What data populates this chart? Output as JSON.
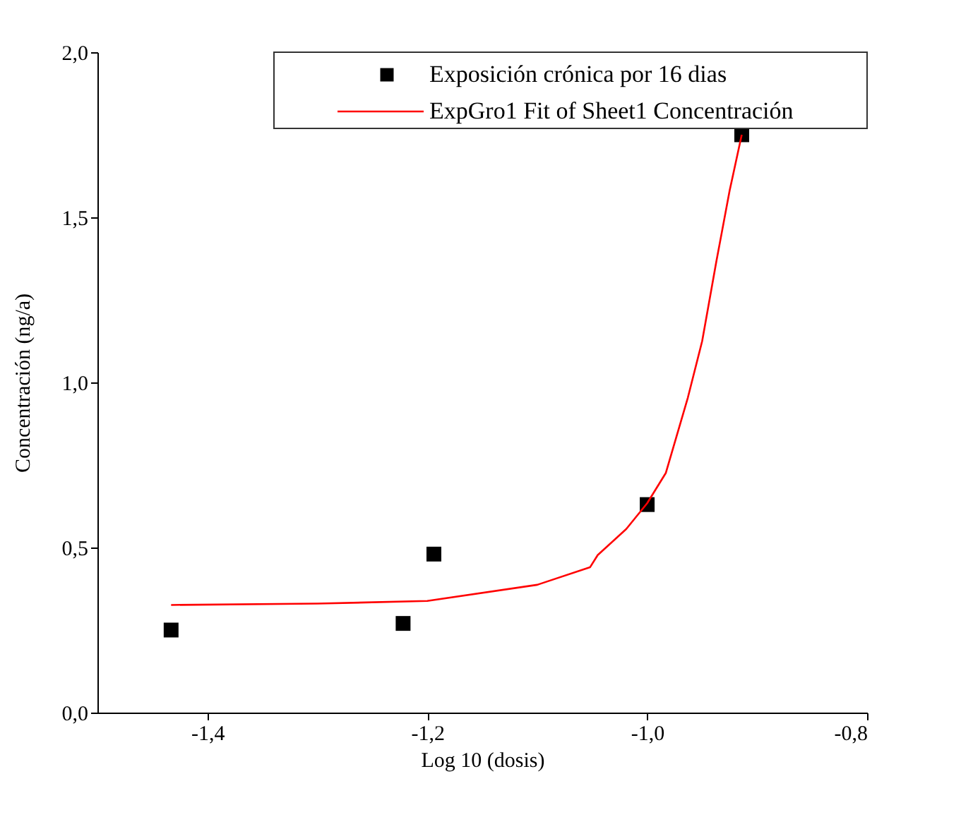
{
  "chart_data": {
    "type": "scatter",
    "xlabel": "Log 10 (dosis)",
    "ylabel": "Concentración (ng/a)",
    "xlim": [
      -1.5,
      -0.8
    ],
    "xticks": [
      {
        "value": -1.4,
        "label": "-1,4"
      },
      {
        "value": -1.2,
        "label": "-1,2"
      },
      {
        "value": -1.0,
        "label": "-1,0"
      },
      {
        "value": -0.8,
        "label": "-0,8"
      }
    ],
    "ylim": [
      0,
      2.0
    ],
    "yticks": [
      {
        "value": 0,
        "label": "0,0"
      },
      {
        "value": 0.5,
        "label": "0,5"
      },
      {
        "value": 1.0,
        "label": "1,0"
      },
      {
        "value": 1.5,
        "label": "1,5"
      },
      {
        "value": 2.0,
        "label": "2,0"
      }
    ],
    "grid": false,
    "legend": "top right",
    "series": [
      {
        "name": "Exposición crónica por 16 dias",
        "marker": "square",
        "color": "#000000",
        "x": [
          -1.433,
          -1.222,
          -1.194,
          -1.0,
          -0.914
        ],
        "values": [
          0.25,
          0.27,
          0.48,
          0.63,
          1.75
        ]
      },
      {
        "name": "ExpGro1 Fit of Sheet1 Concentración",
        "type": "line",
        "marker": "none",
        "line_style": "solid",
        "color": "#ff0000",
        "x": [
          -1.433,
          -1.3,
          -1.2,
          -1.1,
          -1.052,
          -1.045,
          -1.019,
          -1.0,
          -0.983,
          -0.963,
          -0.95,
          -0.937,
          -0.925,
          -0.914
        ],
        "values": [
          0.326,
          0.33,
          0.338,
          0.387,
          0.44,
          0.477,
          0.556,
          0.634,
          0.726,
          0.954,
          1.125,
          1.368,
          1.581,
          1.75
        ]
      }
    ]
  }
}
